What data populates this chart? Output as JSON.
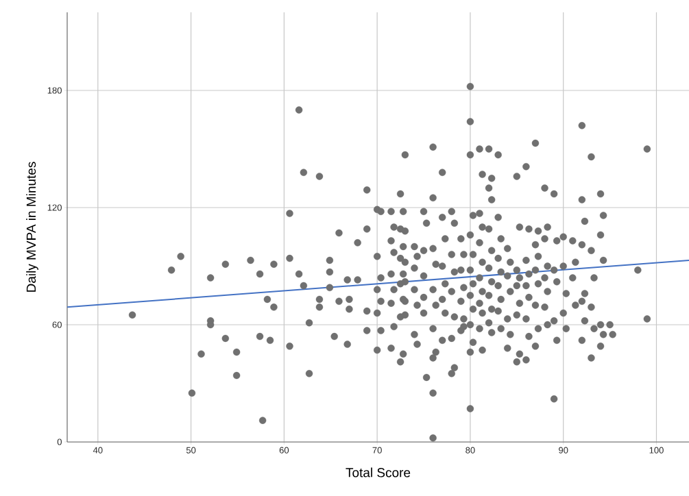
{
  "chart_data": {
    "type": "scatter",
    "xlabel": "Total Score",
    "ylabel": "Daily MVPA in Minutes",
    "xlim": [
      36.7,
      103.5
    ],
    "ylim": [
      0,
      220
    ],
    "xticks": [
      40,
      50,
      60,
      70,
      80,
      90,
      100
    ],
    "yticks": [
      0,
      60,
      120,
      180
    ],
    "grid": true,
    "series": [
      {
        "color": "#707070",
        "x": [
          43.7,
          47.9,
          48.9,
          50.1,
          51.1,
          52.1,
          52.1,
          52.1,
          53.7,
          53.7,
          54.9,
          54.9,
          56.4,
          57.4,
          57.4,
          57.7,
          58.2,
          58.5,
          58.9,
          58.9,
          60.6,
          60.6,
          60.6,
          61.6,
          61.6,
          62.1,
          62.1,
          62.7,
          62.7,
          63.8,
          63.8,
          63.8,
          64.9,
          64.9,
          64.9,
          65.4,
          65.9,
          65.9,
          66.8,
          66.8,
          67,
          67,
          67.9,
          67.9,
          68.9,
          68.9,
          68.9,
          68.9,
          70.0,
          70.0,
          70.0,
          70.0,
          70.0,
          70.4,
          70.4,
          70.4,
          70.4,
          71.5,
          71.5,
          71.5,
          71.5,
          71.5,
          71.8,
          71.8,
          71.8,
          71.8,
          72.5,
          72.5,
          72.5,
          72.5,
          72.5,
          72.5,
          72.8,
          72.8,
          72.8,
          72.8,
          72.8,
          73.0,
          73.0,
          73.0,
          73.0,
          73.0,
          73.0,
          74.0,
          74.0,
          74.0,
          74.0,
          74.3,
          74.3,
          74.3,
          75.0,
          75.0,
          75.0,
          75.0,
          75.0,
          75.3,
          75.3,
          76.0,
          76.0,
          76.0,
          76.0,
          76.0,
          76.0,
          76.0,
          76.0,
          76.3,
          76.3,
          76.3,
          77.0,
          77.0,
          77.0,
          77.0,
          77.0,
          77.3,
          77.3,
          77.3,
          78.0,
          78.0,
          78.0,
          78.0,
          78.0,
          78.3,
          78.3,
          78.3,
          78.3,
          79.0,
          79.0,
          79.0,
          79.0,
          79.3,
          79.3,
          79.3,
          79.3,
          80.0,
          80.0,
          80.0,
          80.0,
          80.0,
          80.0,
          80.0,
          80.0,
          80.0,
          80.3,
          80.3,
          80.3,
          80.3,
          80.3,
          81.0,
          81.0,
          81.0,
          81.0,
          81.0,
          81.0,
          81.3,
          81.3,
          81.3,
          81.3,
          81.3,
          81.3,
          82.0,
          82.0,
          82.0,
          82.0,
          82.0,
          82.0,
          82.3,
          82.3,
          82.3,
          82.3,
          82.3,
          82.3,
          83.0,
          83.0,
          83.0,
          83.0,
          83.0,
          83.3,
          83.3,
          83.3,
          83.3,
          84.0,
          84.0,
          84.0,
          84.0,
          84.3,
          84.3,
          84.3,
          85.0,
          85.0,
          85.0,
          85.0,
          85.0,
          85.3,
          85.3,
          85.3,
          85.3,
          86.0,
          86.0,
          86.0,
          86.0,
          86.0,
          86.3,
          86.3,
          86.3,
          86.3,
          87.0,
          87.0,
          87.0,
          87.0,
          87.0,
          87.3,
          87.3,
          87.3,
          87.3,
          88.0,
          88.0,
          88.0,
          88.0,
          88.3,
          88.3,
          88.3,
          88.3,
          89.0,
          89.0,
          89.0,
          89.0,
          89.3,
          89.3,
          89.3,
          90.0,
          90.0,
          90.0,
          90.3,
          90.3,
          91.0,
          91.0,
          91.3,
          91.3,
          92.0,
          92.0,
          92.0,
          92.0,
          92.0,
          92.3,
          92.3,
          92.3,
          93.0,
          93.0,
          93.0,
          93.0,
          93.3,
          93.3,
          94.0,
          94.0,
          94.0,
          94.0,
          94.3,
          94.3,
          94.3,
          95.0,
          95.3,
          98.0,
          99.0,
          99.0
        ],
        "values": [
          65,
          88,
          95,
          25,
          45,
          84,
          62,
          60,
          91,
          53,
          46,
          34,
          93,
          86,
          54,
          11,
          73,
          52,
          69,
          91,
          94,
          117,
          49,
          170,
          86,
          138,
          80,
          61,
          35,
          136,
          73,
          69,
          93,
          87,
          79,
          54,
          107,
          72,
          50,
          83,
          73,
          68,
          102,
          83,
          129,
          109,
          67,
          57,
          119,
          95,
          78,
          66,
          47,
          118,
          84,
          72,
          57,
          118,
          103,
          86,
          71,
          48,
          110,
          97,
          78,
          59,
          127,
          109,
          94,
          81,
          64,
          41,
          118,
          100,
          86,
          73,
          45,
          147,
          108,
          92,
          82,
          72,
          65,
          100,
          89,
          78,
          55,
          95,
          70,
          50,
          118,
          98,
          85,
          74,
          66,
          112,
          33,
          151,
          125,
          99,
          78,
          58,
          43,
          25,
          2,
          91,
          70,
          46,
          138,
          115,
          90,
          73,
          52,
          104,
          81,
          66,
          118,
          96,
          77,
          53,
          35,
          112,
          87,
          64,
          38,
          104,
          88,
          72,
          57,
          96,
          79,
          63,
          59,
          182,
          164,
          147,
          106,
          88,
          75,
          60,
          46,
          17,
          116,
          96,
          81,
          68,
          51,
          150,
          117,
          102,
          84,
          71,
          58,
          137,
          110,
          92,
          77,
          66,
          47,
          150,
          130,
          109,
          89,
          75,
          61,
          135,
          124,
          98,
          82,
          68,
          56,
          147,
          115,
          94,
          80,
          67,
          104,
          87,
          73,
          58,
          99,
          85,
          63,
          48,
          92,
          77,
          55,
          136,
          88,
          80,
          65,
          41,
          110,
          84,
          71,
          45,
          141,
          93,
          80,
          63,
          42,
          109,
          86,
          74,
          54,
          153,
          101,
          88,
          70,
          49,
          108,
          95,
          81,
          58,
          130,
          104,
          84,
          69,
          110,
          90,
          77,
          60,
          127,
          88,
          62,
          22,
          103,
          82,
          52,
          105,
          90,
          66,
          76,
          58,
          103,
          84,
          92,
          70,
          162,
          124,
          101,
          72,
          52,
          113,
          76,
          62,
          146,
          98,
          69,
          43,
          84,
          58,
          127,
          106,
          60,
          49,
          116,
          93,
          55,
          60,
          55,
          88,
          150,
          63
        ]
      },
      {
        "type": "line",
        "color": "#4472c4",
        "x": [
          36.7,
          103.5
        ],
        "values": [
          69,
          93
        ]
      }
    ]
  }
}
